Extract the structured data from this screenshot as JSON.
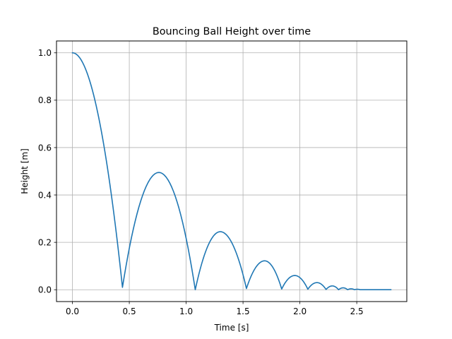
{
  "chart_data": {
    "type": "line",
    "title": "Bouncing Ball Height over time",
    "xlabel": "Time [s]",
    "ylabel": "Height [m]",
    "xlim": [
      -0.14,
      2.94
    ],
    "ylim": [
      -0.05,
      1.05
    ],
    "xticks": [
      0.0,
      0.5,
      1.0,
      1.5,
      2.0,
      2.5
    ],
    "xtick_labels": [
      "0.0",
      "0.5",
      "1.0",
      "1.5",
      "2.0",
      "2.5"
    ],
    "yticks": [
      0.0,
      0.2,
      0.4,
      0.6,
      0.8,
      1.0
    ],
    "ytick_labels": [
      "0.0",
      "0.2",
      "0.4",
      "0.6",
      "0.8",
      "1.0"
    ],
    "grid": true,
    "line_color": "#1f77b4",
    "grid_color": "#b0b0b0",
    "series": [
      {
        "bounces": [
          {
            "kind": "drop",
            "t_start": 0.0,
            "t_end": 0.44,
            "peak_t": 0.0,
            "peak_h": 1.0,
            "end_h": 0.01
          },
          {
            "kind": "arc",
            "t_start": 0.44,
            "t_end": 1.08,
            "peak_t": 0.76,
            "peak_h": 0.495,
            "start_h": 0.01,
            "end_h": 0.0
          },
          {
            "kind": "arc",
            "t_start": 1.08,
            "t_end": 1.53,
            "peak_t": 1.3,
            "peak_h": 0.245,
            "start_h": 0.0,
            "end_h": 0.005
          },
          {
            "kind": "arc",
            "t_start": 1.53,
            "t_end": 1.84,
            "peak_t": 1.69,
            "peak_h": 0.122,
            "start_h": 0.005,
            "end_h": 0.003
          },
          {
            "kind": "arc",
            "t_start": 1.84,
            "t_end": 2.07,
            "peak_t": 1.955,
            "peak_h": 0.06,
            "start_h": 0.003,
            "end_h": 0.002
          },
          {
            "kind": "arc",
            "t_start": 2.07,
            "t_end": 2.23,
            "peak_t": 2.15,
            "peak_h": 0.03,
            "start_h": 0.002,
            "end_h": 0.001
          },
          {
            "kind": "arc",
            "t_start": 2.23,
            "t_end": 2.34,
            "peak_t": 2.285,
            "peak_h": 0.016,
            "start_h": 0.001,
            "end_h": 0.0
          },
          {
            "kind": "arc",
            "t_start": 2.34,
            "t_end": 2.42,
            "peak_t": 2.38,
            "peak_h": 0.008,
            "start_h": 0.0,
            "end_h": 0.0
          },
          {
            "kind": "arc",
            "t_start": 2.42,
            "t_end": 2.48,
            "peak_t": 2.45,
            "peak_h": 0.004,
            "start_h": 0.0,
            "end_h": 0.0
          },
          {
            "kind": "arc",
            "t_start": 2.48,
            "t_end": 2.53,
            "peak_t": 2.505,
            "peak_h": 0.002,
            "start_h": 0.0,
            "end_h": 0.0
          },
          {
            "kind": "flat",
            "t_start": 2.53,
            "t_end": 2.8,
            "h": 0.0
          }
        ]
      }
    ]
  }
}
